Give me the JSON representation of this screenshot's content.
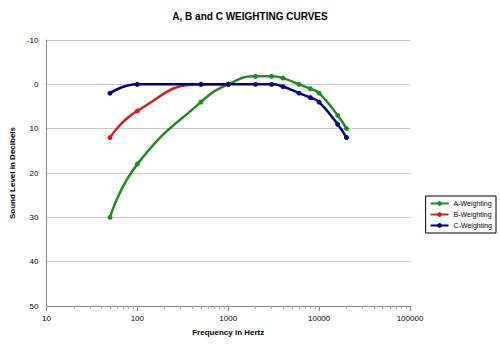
{
  "chart_data": {
    "type": "line",
    "title": "A, B and C WEIGHTING CURVES",
    "x_label": "Frequency in Hertz",
    "y_label": "Sound Level in Decibels",
    "log": "x",
    "xlim": [
      10,
      100000
    ],
    "xticks": [
      10,
      100,
      1000,
      10000,
      100000
    ],
    "ylim": [
      50,
      -10
    ],
    "yticks": [
      -10,
      0,
      10,
      20,
      30,
      40,
      50
    ],
    "grid": true,
    "legend": "right",
    "marker": "circle",
    "series": [
      {
        "name": "A-Weighting",
        "color": "#228b22",
        "x": [
          50,
          100,
          500,
          1000,
          2000,
          3000,
          4000,
          6000,
          8000,
          10000,
          16000,
          20000
        ],
        "values": [
          30,
          18,
          4,
          0,
          -1.8,
          -1.8,
          -1.4,
          0,
          1,
          2,
          7,
          10
        ]
      },
      {
        "name": "B-Weighting",
        "color": "#d02020",
        "x": [
          50,
          100,
          500,
          1000
        ],
        "values": [
          12,
          6,
          0,
          0
        ]
      },
      {
        "name": "C-Weighting",
        "color": "#000080",
        "x": [
          50,
          100,
          500,
          1000,
          2000,
          3000,
          4000,
          6000,
          8000,
          10000,
          16000,
          20000
        ],
        "values": [
          2,
          0,
          0,
          0,
          0,
          0,
          0.5,
          2,
          3,
          4,
          9,
          12
        ]
      }
    ]
  }
}
